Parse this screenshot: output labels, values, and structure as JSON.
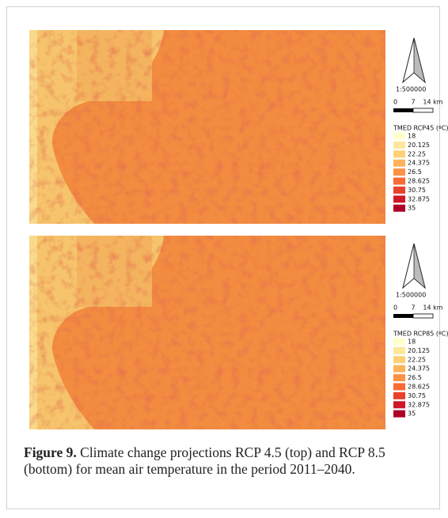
{
  "figure": {
    "panels": [
      {
        "scale": "1:500000",
        "scale_bar": [
          "0",
          "7",
          "14 km"
        ],
        "legend": {
          "title": "TMED RCP45 (ºC)",
          "entries": [
            {
              "label": "18",
              "color": "#ffffcc"
            },
            {
              "label": "20.125",
              "color": "#fee79a"
            },
            {
              "label": "22.25",
              "color": "#fed176"
            },
            {
              "label": "24.375",
              "color": "#fdb25b"
            },
            {
              "label": "26.5",
              "color": "#fd9245"
            },
            {
              "label": "28.625",
              "color": "#f86b34"
            },
            {
              "label": "30.75",
              "color": "#e9412a"
            },
            {
              "label": "32.875",
              "color": "#d0172a"
            },
            {
              "label": "35",
              "color": "#b00026"
            }
          ]
        }
      },
      {
        "scale": "1:500000",
        "scale_bar": [
          "0",
          "7",
          "14 km"
        ],
        "legend": {
          "title": "TMED RCP85 (ºC)",
          "entries": [
            {
              "label": "18",
              "color": "#ffffcc"
            },
            {
              "label": "20.125",
              "color": "#fee79a"
            },
            {
              "label": "22.25",
              "color": "#fed176"
            },
            {
              "label": "24.375",
              "color": "#fdb25b"
            },
            {
              "label": "26.5",
              "color": "#fd9245"
            },
            {
              "label": "28.625",
              "color": "#f86b34"
            },
            {
              "label": "30.75",
              "color": "#e9412a"
            },
            {
              "label": "32.875",
              "color": "#d0172a"
            },
            {
              "label": "35",
              "color": "#b00026"
            }
          ]
        }
      }
    ],
    "caption": {
      "label": "Figure 9.",
      "text": "Climate change projections RCP 4.5 (top) and RCP 8.5 (bottom) for mean air temperature in the period 2011–2040."
    }
  }
}
